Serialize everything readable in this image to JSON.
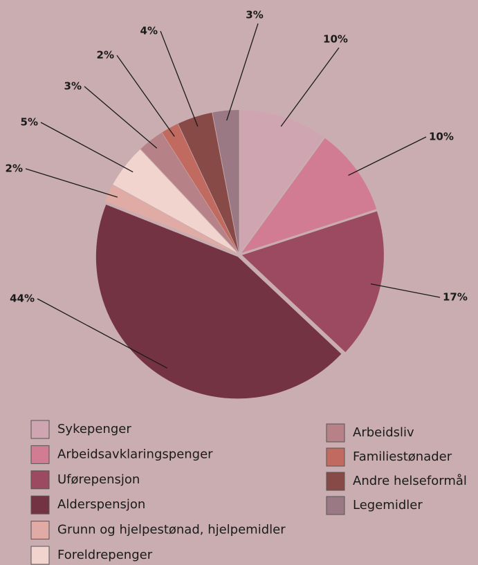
{
  "chart_data": {
    "type": "pie",
    "categories": [
      "Sykepenger",
      "Arbeidsavklaringspenger",
      "Uførepensjon",
      "Alderspensjon",
      "Grunn og hjelpestønad, hjelpemidler",
      "Foreldrepenger",
      "Arbeidsliv",
      "Familiestønader",
      "Andre helseformål",
      "Legemidler"
    ],
    "values": [
      10,
      10,
      17,
      44,
      2,
      5,
      3,
      2,
      4,
      3
    ],
    "value_labels": [
      "10%",
      "10%",
      "17%",
      "44%",
      "2%",
      "5%",
      "3%",
      "2%",
      "4%",
      "3%"
    ],
    "colors": [
      "#d0a5b2",
      "#d17c93",
      "#9b4a62",
      "#733342",
      "#e0aba5",
      "#f2d4cf",
      "#b78188",
      "#c06a60",
      "#874a47",
      "#9a7985"
    ]
  }
}
